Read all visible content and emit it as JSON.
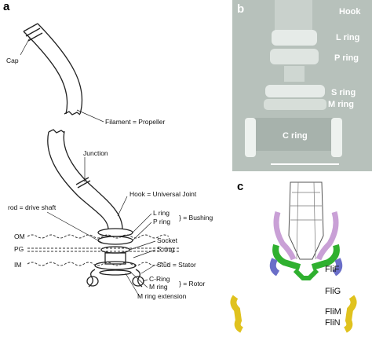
{
  "panels": {
    "a": {
      "letter": "a",
      "labels": {
        "cap": "Cap",
        "filament": "Filament = Propeller",
        "junction": "Junction",
        "hook": "Hook = Universal Joint",
        "rod": "rod = drive shaft",
        "l_ring": "L ring",
        "p_ring": "P ring",
        "bushing": "} = Bushing",
        "om": "OM",
        "pg": "PG",
        "im": "IM",
        "socket": "Socket",
        "s_ring": "S ring",
        "stud": "Stud = Stator",
        "c_ring": "C-Ring",
        "m_ring": "M ring",
        "rotor": "} = Rotor",
        "m_ext": "M ring extension"
      }
    },
    "b": {
      "letter": "b",
      "labels": {
        "hook": "Hook",
        "l_ring": "L ring",
        "p_ring": "P ring",
        "s_ring": "S ring",
        "m_ring": "M ring",
        "c_ring": "C ring"
      }
    },
    "c": {
      "letter": "c",
      "labels": {
        "flif": "FliF",
        "flig": "FliG",
        "flim": "FliM",
        "flin": "FliN"
      }
    }
  }
}
